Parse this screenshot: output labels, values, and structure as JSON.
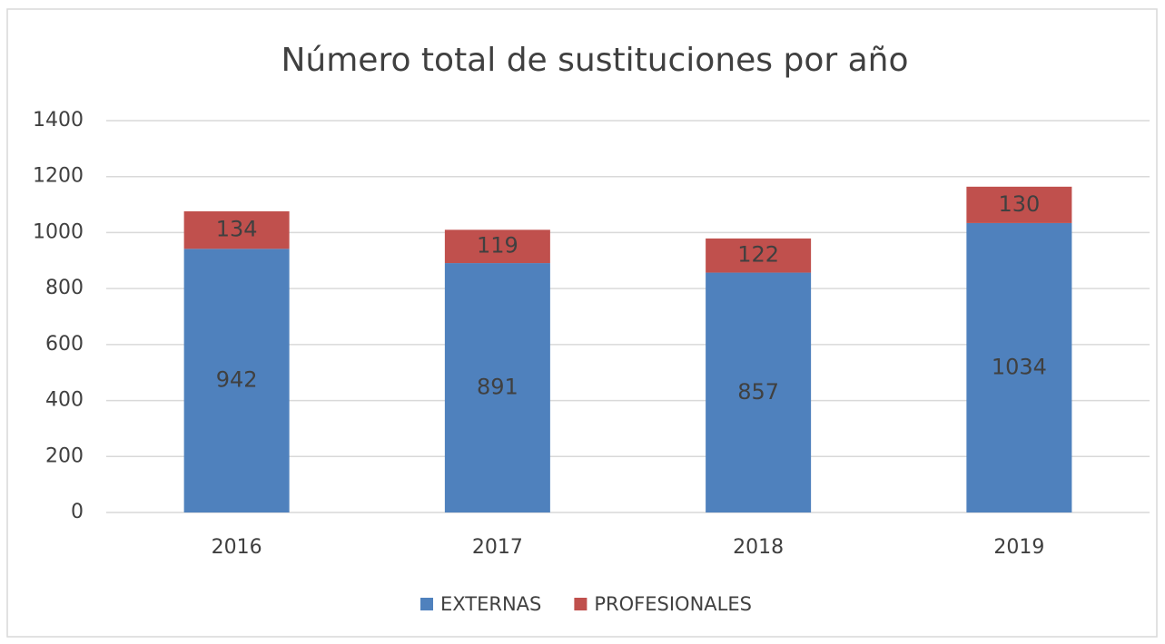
{
  "chart_data": {
    "type": "stacked_bar",
    "title": "Número total de sustituciones por año",
    "categories": [
      "2016",
      "2017",
      "2018",
      "2019"
    ],
    "series": [
      {
        "name": "EXTERNAS",
        "color": "#4f81bd",
        "values": [
          942,
          891,
          857,
          1034
        ]
      },
      {
        "name": "PROFESIONALES",
        "color": "#c0504d",
        "values": [
          134,
          119,
          122,
          130
        ]
      }
    ],
    "ylim": [
      0,
      1400
    ],
    "yticks": [
      0,
      200,
      400,
      600,
      800,
      1000,
      1200,
      1400
    ],
    "grid": true,
    "legend": "bottom"
  }
}
